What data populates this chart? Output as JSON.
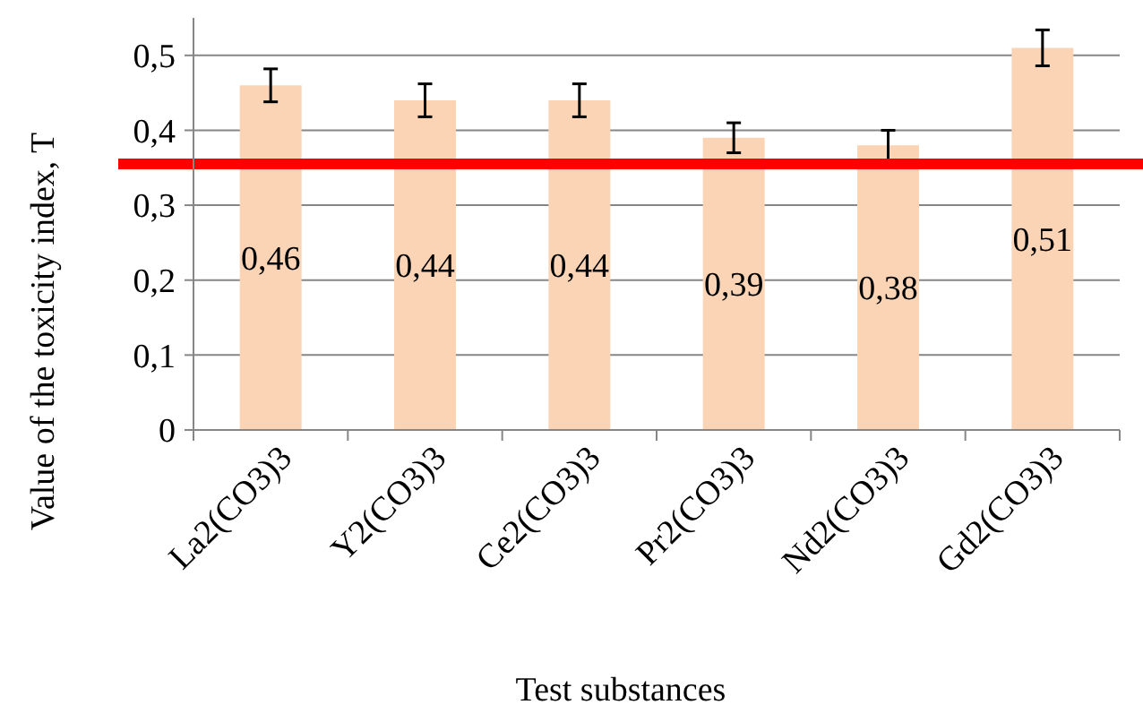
{
  "chart_data": {
    "type": "bar",
    "xlabel": "Test substances",
    "ylabel": "Value of the toxicity index, T",
    "categories": [
      "La2(CO3)3",
      "Y2(CO3)3",
      "Ce2(CO3)3",
      "Pr2(CO3)3",
      "Nd2(CO3)3",
      "Gd2(CO3)3"
    ],
    "values": [
      0.46,
      0.44,
      0.44,
      0.39,
      0.38,
      0.51
    ],
    "errors": [
      0.022,
      0.022,
      0.022,
      0.02,
      0.02,
      0.024
    ],
    "value_labels": [
      "0,46",
      "0,44",
      "0,44",
      "0,39",
      "0,38",
      "0,51"
    ],
    "color": "#fad4b4",
    "ylim": [
      0,
      0.55
    ],
    "yticks": [
      {
        "value": 0,
        "label": "0"
      },
      {
        "value": 0.1,
        "label": "0,1"
      },
      {
        "value": 0.2,
        "label": "0,2"
      },
      {
        "value": 0.3,
        "label": "0,3"
      },
      {
        "value": 0.4,
        "label": "0,4"
      },
      {
        "value": 0.5,
        "label": "0,5"
      }
    ],
    "grid": "y",
    "ref_lines": [
      {
        "axis": "y",
        "value": 0.355,
        "color": "#ff0000"
      }
    ]
  }
}
